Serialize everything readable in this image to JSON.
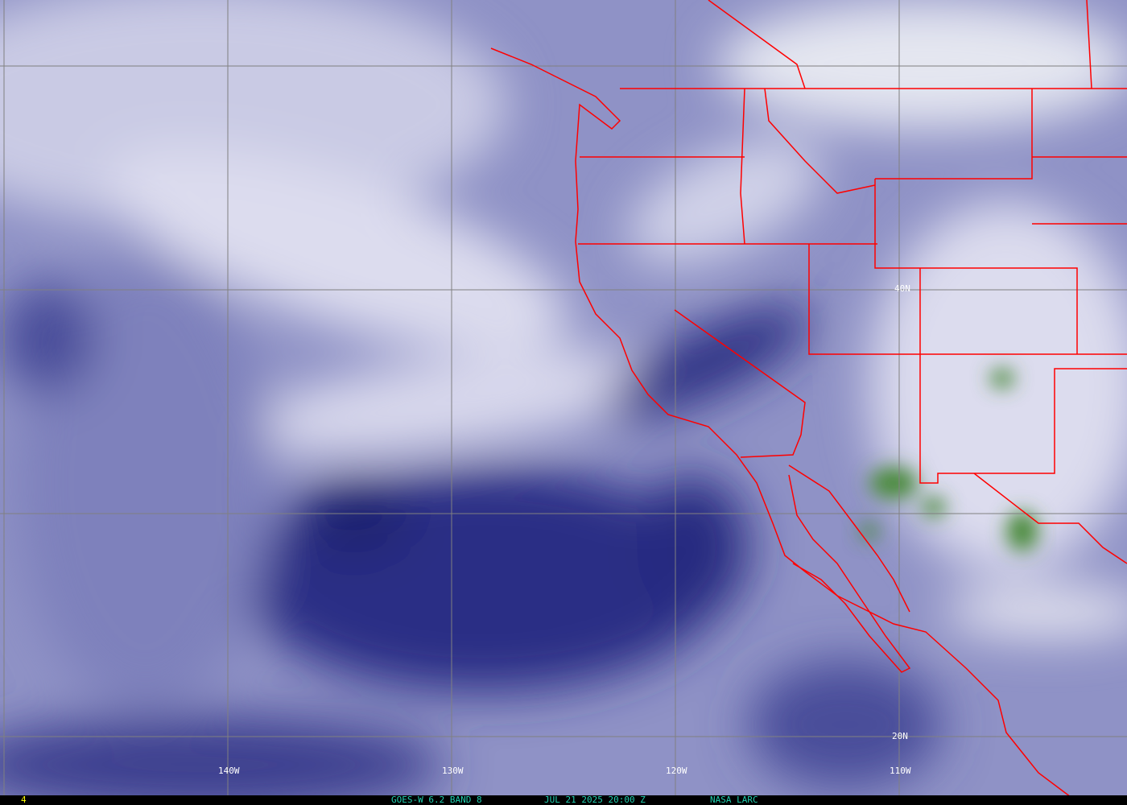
{
  "image": {
    "satellite": "GOES-W",
    "channel": "6.2 BAND 8",
    "datetime": "JUL 21 2025 20:00 Z",
    "credit": "NASA LARC",
    "frame_number": "4",
    "colors": {
      "dry": "#1a1a6e",
      "mid": "#8c8fc4",
      "moist": "#e8e8f4",
      "cold_cloud": "#4a8a3a",
      "boundaries": "#ff0000",
      "grid": "#808080",
      "footer_text": "#20d0b0",
      "frame_text": "#ffff00"
    }
  },
  "grid_labels": {
    "lon": [
      "140W",
      "130W",
      "120W",
      "110W"
    ],
    "lat": [
      "40N",
      "20N"
    ]
  }
}
